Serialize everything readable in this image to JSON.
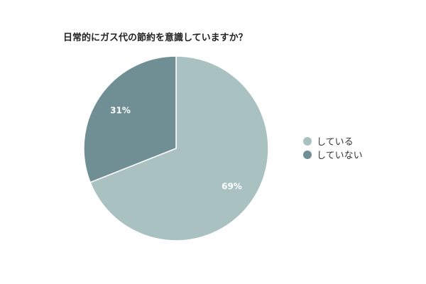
{
  "chart_data": {
    "type": "pie",
    "title": "日常的にガス代の節約を意識していますか？",
    "slices": [
      {
        "label": "している",
        "value": 69,
        "display": "69%",
        "color": "#aac1c2"
      },
      {
        "label": "していない",
        "value": 31,
        "display": "31%",
        "color": "#6f8f94"
      }
    ],
    "legend_position": "right"
  }
}
